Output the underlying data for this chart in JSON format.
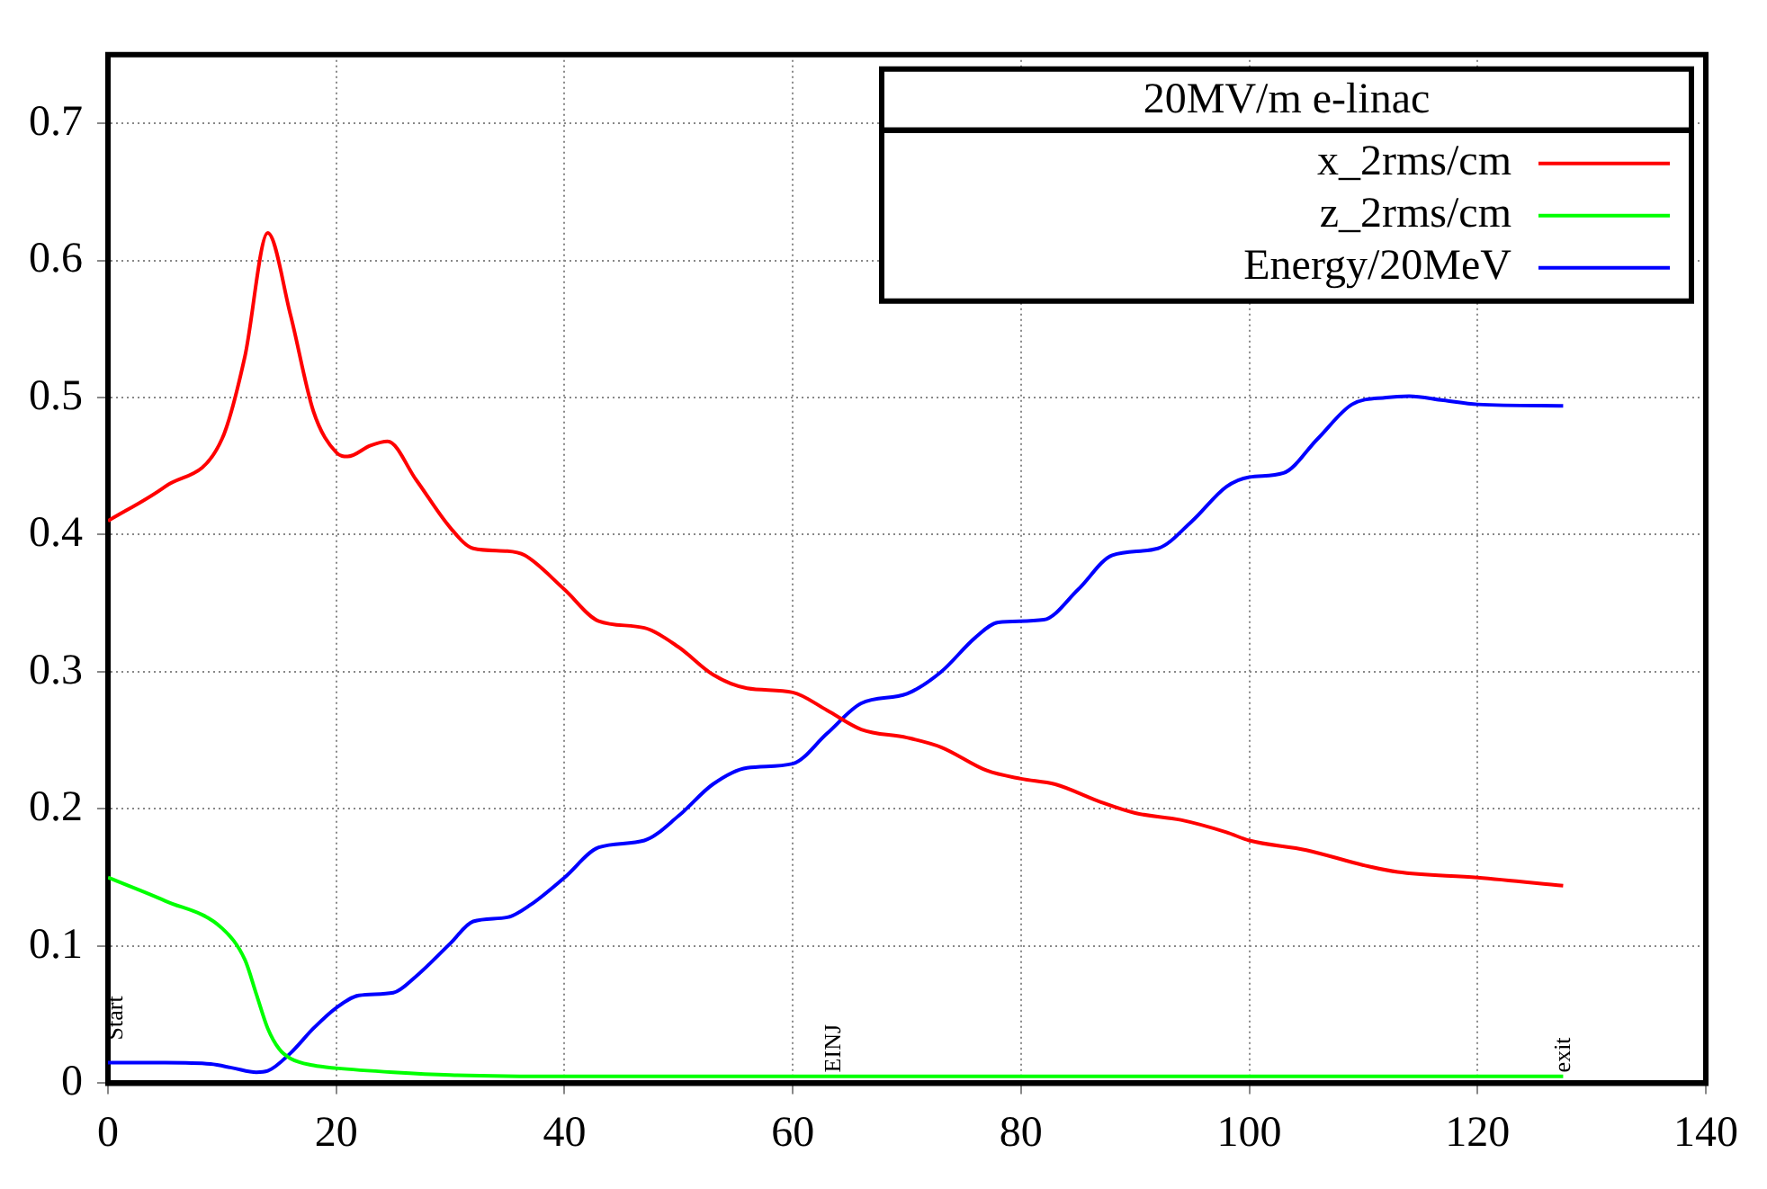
{
  "chart_data": {
    "type": "line",
    "legend_title": "20MV/m e-linac",
    "legend": "top right",
    "grid": true,
    "marker": "none",
    "line_style": "solid",
    "xlim": [
      0,
      140
    ],
    "xticks": [
      0,
      20,
      40,
      60,
      80,
      100,
      120,
      140
    ],
    "ylim": [
      0,
      0.75
    ],
    "yticks": [
      0,
      0.1,
      0.2,
      0.3,
      0.4,
      0.5,
      0.6,
      0.7
    ],
    "annotations": [
      "Start",
      {
        "text": "EINJ",
        "x": 63.5,
        "y": 0
      },
      {
        "text": "exit",
        "x": 127.5,
        "y": 0
      }
    ],
    "series": [
      {
        "name": "x_2rms/cm",
        "color": "#ff0000",
        "x": [
          0,
          5,
          10,
          12,
          14,
          16,
          18,
          20,
          21,
          23,
          24.5,
          27,
          30,
          32,
          35,
          36.5,
          40,
          43,
          47,
          50,
          53,
          56,
          60,
          63,
          66,
          70,
          73,
          77,
          80,
          83,
          87,
          90,
          94,
          98,
          100,
          105,
          110,
          113,
          120,
          127.5
        ],
        "values": [
          0.41,
          0.435,
          0.47,
          0.53,
          0.62,
          0.56,
          0.49,
          0.46,
          0.457,
          0.465,
          0.468,
          0.44,
          0.405,
          0.39,
          0.388,
          0.385,
          0.36,
          0.337,
          0.332,
          0.318,
          0.298,
          0.288,
          0.285,
          0.272,
          0.258,
          0.252,
          0.245,
          0.228,
          0.222,
          0.218,
          0.205,
          0.197,
          0.192,
          0.183,
          0.177,
          0.17,
          0.159,
          0.154,
          0.15,
          0.144
        ]
      },
      {
        "name": "z_2rms/cm",
        "color": "#00ff00",
        "x": [
          0,
          5,
          10,
          12,
          13,
          14,
          15,
          16,
          18,
          20,
          25,
          30,
          40,
          60,
          127.5
        ],
        "values": [
          0.15,
          0.133,
          0.113,
          0.09,
          0.065,
          0.04,
          0.025,
          0.018,
          0.013,
          0.011,
          0.008,
          0.006,
          0.005,
          0.005,
          0.005
        ]
      },
      {
        "name": "Energy/20MeV",
        "color": "#0000ff",
        "x": [
          0,
          5,
          9,
          11,
          13,
          14,
          16,
          18,
          20,
          22,
          25,
          27,
          30,
          32,
          35,
          37,
          40,
          43,
          47,
          50,
          53,
          56,
          60,
          63,
          66,
          70,
          73,
          76,
          78,
          82,
          85,
          88,
          92,
          95,
          98,
          100,
          103,
          106,
          109,
          112,
          114,
          117,
          120,
          127.5
        ],
        "values": [
          0.015,
          0.015,
          0.014,
          0.011,
          0.008,
          0.009,
          0.022,
          0.04,
          0.055,
          0.064,
          0.066,
          0.078,
          0.102,
          0.118,
          0.121,
          0.13,
          0.15,
          0.172,
          0.177,
          0.195,
          0.218,
          0.23,
          0.233,
          0.255,
          0.277,
          0.284,
          0.3,
          0.325,
          0.336,
          0.338,
          0.36,
          0.385,
          0.39,
          0.41,
          0.435,
          0.442,
          0.445,
          0.47,
          0.495,
          0.5,
          0.501,
          0.498,
          0.495,
          0.494
        ]
      }
    ]
  }
}
